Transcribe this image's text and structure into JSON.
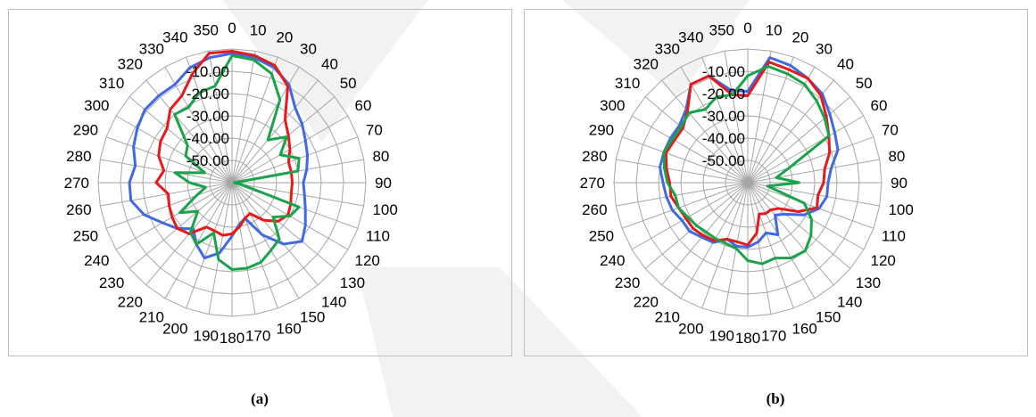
{
  "panels": [
    {
      "caption": "(a)"
    },
    {
      "caption": "(b)"
    }
  ],
  "colors": {
    "grid": "#a6a6a6",
    "border": "#bfbfbf",
    "series_blue": "#4169e1",
    "series_red": "#e41a1c",
    "series_green": "#1aa34a",
    "watermark": "#f0f0f0"
  },
  "chart_data": [
    {
      "type": "radar",
      "angles": [
        0,
        10,
        20,
        30,
        40,
        50,
        60,
        70,
        80,
        90,
        100,
        110,
        120,
        130,
        140,
        150,
        160,
        170,
        180,
        190,
        200,
        210,
        220,
        230,
        240,
        250,
        260,
        270,
        280,
        290,
        300,
        310,
        320,
        330,
        340,
        350
      ],
      "angle_labels": [
        "0",
        "10",
        "20",
        "30",
        "40",
        "50",
        "60",
        "70",
        "80",
        "90",
        "100",
        "110",
        "120",
        "130",
        "140",
        "150",
        "160",
        "170",
        "180",
        "190",
        "200",
        "210",
        "220",
        "230",
        "240",
        "250",
        "260",
        "270",
        "280",
        "290",
        "300",
        "310",
        "320",
        "330",
        "340",
        "350"
      ],
      "radial_ticks": [
        -60,
        -50,
        -40,
        -30,
        -20,
        -10,
        0
      ],
      "radial_labels": [
        "-50.00",
        "-40.00",
        "-30.00",
        "-20.00",
        "-10.00"
      ],
      "rlim": [
        -60,
        0
      ],
      "series": [
        {
          "color": "blue",
          "values": [
            -2,
            -3,
            -5,
            -9,
            -16,
            -19,
            -22,
            -24,
            -26,
            -28,
            -27,
            -25,
            -22,
            -19,
            -24,
            -33,
            -43,
            -41,
            -36,
            -28,
            -24,
            -28,
            -33,
            -28,
            -24,
            -18,
            -14,
            -14,
            -16,
            -13,
            -11,
            -9,
            -9,
            -9,
            -5,
            -3
          ]
        },
        {
          "color": "red",
          "values": [
            -1,
            -2,
            -4,
            -10,
            -23,
            -27,
            -30,
            -33,
            -33,
            -33,
            -33,
            -32,
            -31,
            -33,
            -38,
            -44,
            -43,
            -40,
            -37,
            -36,
            -37,
            -37,
            -30,
            -28,
            -29,
            -30,
            -31,
            -26,
            -29,
            -25,
            -23,
            -22,
            -17,
            -15,
            -8,
            -1
          ]
        },
        {
          "color": "green",
          "values": [
            -3,
            -4,
            -8,
            -17,
            -35,
            -28,
            -35,
            -28,
            -30,
            -59,
            -56,
            -28,
            -30,
            -36,
            -27,
            -25,
            -22,
            -21,
            -21,
            -25,
            -36,
            -28,
            -31,
            -40,
            -33,
            -43,
            -48,
            -41,
            -34,
            -47,
            -36,
            -34,
            -20,
            -21,
            -17,
            -16
          ]
        }
      ]
    },
    {
      "type": "radar",
      "angles": [
        0,
        10,
        20,
        30,
        40,
        50,
        60,
        70,
        80,
        90,
        100,
        110,
        120,
        130,
        140,
        150,
        160,
        170,
        180,
        190,
        200,
        210,
        220,
        230,
        240,
        250,
        260,
        270,
        280,
        290,
        300,
        310,
        320,
        330,
        340,
        350
      ],
      "angle_labels": [
        "0",
        "10",
        "20",
        "30",
        "40",
        "50",
        "60",
        "70",
        "80",
        "90",
        "100",
        "110",
        "120",
        "130",
        "140",
        "150",
        "160",
        "170",
        "180",
        "190",
        "200",
        "210",
        "220",
        "230",
        "240",
        "250",
        "260",
        "270",
        "280",
        "290",
        "300",
        "310",
        "320",
        "330",
        "340",
        "350"
      ],
      "radial_ticks": [
        -60,
        -50,
        -40,
        -30,
        -20,
        -10,
        0
      ],
      "radial_labels": [
        "-50.00",
        "-40.00",
        "-30.00",
        "-20.00",
        "-10.00"
      ],
      "rlim": [
        -60,
        0
      ],
      "series": [
        {
          "color": "blue",
          "values": [
            -19,
            -3,
            -4,
            -6,
            -8,
            -12,
            -15,
            -17,
            -22,
            -24,
            -24,
            -26,
            -31,
            -38,
            -41,
            -33,
            -36,
            -33,
            -31,
            -31,
            -33,
            -29,
            -28,
            -26,
            -26,
            -24,
            -23,
            -22,
            -20,
            -20,
            -20,
            -20,
            -17,
            -9,
            -9,
            -18
          ]
        },
        {
          "color": "red",
          "values": [
            -21,
            -5,
            -6,
            -6,
            -9,
            -14,
            -18,
            -21,
            -25,
            -26,
            -28,
            -27,
            -34,
            -42,
            -44,
            -44,
            -45,
            -37,
            -32,
            -33,
            -33,
            -30,
            -29,
            -28,
            -28,
            -27,
            -25,
            -25,
            -23,
            -21,
            -22,
            -22,
            -18,
            -9,
            -9,
            -20
          ]
        },
        {
          "color": "green",
          "values": [
            -12,
            -7,
            -8,
            -9,
            -12,
            -15,
            -18,
            -40,
            -47,
            -37,
            -51,
            -33,
            -27,
            -23,
            -20,
            -21,
            -24,
            -23,
            -25,
            -30,
            -31,
            -31,
            -31,
            -30,
            -29,
            -27,
            -27,
            -24,
            -22,
            -20,
            -21,
            -21,
            -19,
            -22,
            -19,
            -20
          ]
        }
      ]
    }
  ]
}
